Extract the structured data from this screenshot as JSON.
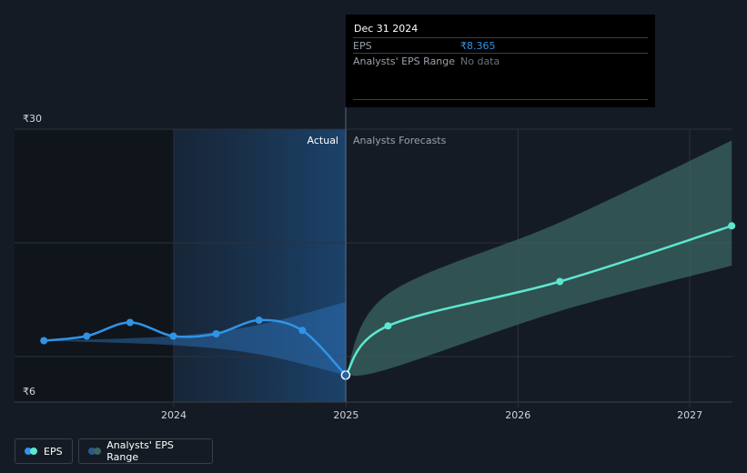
{
  "chart_data": {
    "type": "line",
    "currency_symbol": "₹",
    "y_ticks": [
      "₹30",
      "₹6"
    ],
    "ylim": [
      6,
      30
    ],
    "x_ticks": [
      "2024",
      "2025",
      "2026",
      "2027"
    ],
    "divider_labels": {
      "actual": "Actual",
      "forecast": "Analysts Forecasts"
    },
    "series": [
      {
        "name": "EPS",
        "kind": "actual",
        "color": "#2f94e6",
        "points": [
          {
            "x": "2023-03-31",
            "y": 11.4
          },
          {
            "x": "2023-06-30",
            "y": 11.8
          },
          {
            "x": "2023-09-30",
            "y": 13.0
          },
          {
            "x": "2023-12-31",
            "y": 11.8
          },
          {
            "x": "2024-03-31",
            "y": 12.0
          },
          {
            "x": "2024-06-30",
            "y": 13.2
          },
          {
            "x": "2024-09-30",
            "y": 12.3
          },
          {
            "x": "2024-12-31",
            "y": 8.365
          }
        ]
      },
      {
        "name": "EPS",
        "kind": "forecast",
        "color": "#5ee6d0",
        "points": [
          {
            "x": "2024-12-31",
            "y": 8.365
          },
          {
            "x": "2025-03-31",
            "y": 12.7
          },
          {
            "x": "2026-03-31",
            "y": 16.6
          },
          {
            "x": "2027-03-31",
            "y": 21.5
          }
        ]
      }
    ],
    "forecast_range": {
      "name": "Analysts' EPS Range",
      "color": "#3a6562",
      "points": [
        {
          "x": "2024-12-31",
          "low": 8.365,
          "high": 8.365
        },
        {
          "x": "2025-03-31",
          "low": 8.9,
          "high": 15.5
        },
        {
          "x": "2026-03-31",
          "low": 14.0,
          "high": 21.8
        },
        {
          "x": "2027-03-31",
          "low": 18.0,
          "high": 29.0
        }
      ]
    },
    "actual_band": {
      "points": [
        {
          "x": "2023-03-31",
          "low": 11.4,
          "high": 11.4
        },
        {
          "x": "2023-12-31",
          "low": 11.0,
          "high": 11.8
        },
        {
          "x": "2024-06-30",
          "low": 10.2,
          "high": 12.8
        },
        {
          "x": "2024-12-31",
          "low": 8.365,
          "high": 14.8
        }
      ]
    },
    "tooltip": {
      "date": "Dec 31 2024",
      "rows": [
        {
          "label": "EPS",
          "value": "₹8.365",
          "value_color": "#2f94e6"
        },
        {
          "label": "Analysts' EPS Range",
          "value": "No data",
          "value_color": "#6b7280"
        }
      ]
    },
    "legend": [
      {
        "label": "EPS",
        "colors": [
          "#2f94e6",
          "#5ee6d0"
        ]
      },
      {
        "label": "Analysts' EPS Range",
        "colors": [
          "#2a5a8a",
          "#3a6562"
        ]
      }
    ]
  }
}
